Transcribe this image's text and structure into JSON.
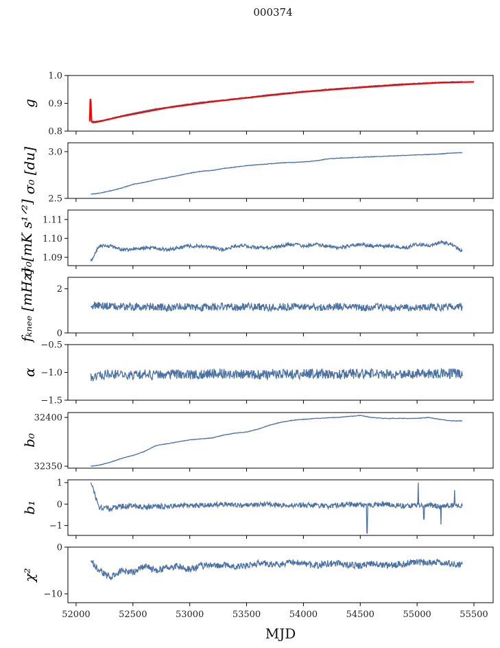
{
  "chart_data": {
    "type": "line",
    "title": "000374",
    "xlabel": "MJD",
    "xlim": [
      51928,
      55669
    ],
    "xticks": [
      52000,
      52500,
      53000,
      53500,
      54000,
      54500,
      55000,
      55500
    ],
    "x": [
      52130,
      52200,
      52300,
      52400,
      52500,
      52600,
      52700,
      52800,
      52900,
      53000,
      53100,
      53200,
      53300,
      53400,
      53500,
      53600,
      53700,
      53800,
      53900,
      54000,
      54100,
      54200,
      54300,
      54400,
      54500,
      54600,
      54700,
      54800,
      54900,
      55000,
      55100,
      55200,
      55300,
      55400
    ],
    "series_color": "#4c72a4",
    "fit_color": "#ff0000",
    "panels": [
      {
        "ylabel": "g",
        "ylim": [
          0.8,
          1.0
        ],
        "yticks": [
          0.8,
          0.9,
          1.0
        ],
        "tick_fmt": 1,
        "noise": 0.0012,
        "values": [
          0.834,
          0.836,
          0.845,
          0.855,
          0.864,
          0.872,
          0.88,
          0.886,
          0.892,
          0.898,
          0.904,
          0.908,
          0.912,
          0.917,
          0.921,
          0.926,
          0.931,
          0.935,
          0.939,
          0.943,
          0.946,
          0.95,
          0.953,
          0.956,
          0.959,
          0.962,
          0.965,
          0.968,
          0.97,
          0.972,
          0.974,
          0.976,
          0.977,
          0.978
        ],
        "fit": {
          "x": [
            52120,
            52125,
            52130,
            52135,
            52140,
            52150,
            52200,
            52400,
            52800,
            53200,
            53600,
            54000,
            54400,
            54800,
            55000,
            55200,
            55400,
            55500
          ],
          "values": [
            0.835,
            0.92,
            0.9,
            0.84,
            0.833,
            0.831,
            0.834,
            0.853,
            0.884,
            0.906,
            0.924,
            0.941,
            0.954,
            0.965,
            0.97,
            0.974,
            0.976,
            0.977
          ]
        }
      },
      {
        "ylabel": "σ₀ [du]",
        "ylim": [
          2.5,
          3.095
        ],
        "yticks": [
          2.5,
          3.0
        ],
        "tick_fmt": 1,
        "noise": 0.003,
        "values": [
          2.545,
          2.555,
          2.58,
          2.61,
          2.65,
          2.67,
          2.7,
          2.72,
          2.745,
          2.77,
          2.79,
          2.8,
          2.82,
          2.835,
          2.85,
          2.86,
          2.87,
          2.88,
          2.885,
          2.89,
          2.9,
          2.92,
          2.93,
          2.935,
          2.94,
          2.945,
          2.95,
          2.955,
          2.96,
          2.965,
          2.97,
          2.975,
          2.985,
          2.99
        ]
      },
      {
        "ylabel": "σ₀[mK s¹ᐟ²]",
        "ylim": [
          1.0856,
          1.115
        ],
        "yticks": [
          1.09,
          1.1,
          1.11
        ],
        "tick_fmt": 2,
        "noise": 0.0009,
        "values": [
          1.088,
          1.096,
          1.096,
          1.094,
          1.094,
          1.095,
          1.095,
          1.094,
          1.095,
          1.096,
          1.096,
          1.095,
          1.094,
          1.096,
          1.096,
          1.095,
          1.095,
          1.096,
          1.097,
          1.096,
          1.097,
          1.096,
          1.095,
          1.096,
          1.097,
          1.096,
          1.096,
          1.096,
          1.095,
          1.097,
          1.096,
          1.098,
          1.097,
          1.093
        ]
      },
      {
        "ylabel": "fₖₙₑₑ [mHz]",
        "ylim": [
          0,
          2.52
        ],
        "yticks": [
          0,
          2
        ],
        "tick_fmt": 0,
        "noise": 0.17,
        "values": [
          1.25,
          1.25,
          1.2,
          1.2,
          1.18,
          1.2,
          1.18,
          1.15,
          1.2,
          1.18,
          1.15,
          1.18,
          1.2,
          1.15,
          1.2,
          1.18,
          1.15,
          1.18,
          1.2,
          1.2,
          1.18,
          1.15,
          1.2,
          1.18,
          1.15,
          1.18,
          1.15,
          1.12,
          1.15,
          1.15,
          1.18,
          1.15,
          1.2,
          1.2
        ]
      },
      {
        "ylabel": "α",
        "ylim": [
          -1.5,
          -0.5
        ],
        "yticks": [
          -1.5,
          -1.0,
          -0.5
        ],
        "tick_fmt": 1,
        "noise": 0.09,
        "values": [
          -1.1,
          -1.05,
          -1.03,
          -1.05,
          -1.04,
          -1.03,
          -1.05,
          -1.04,
          -1.03,
          -1.05,
          -1.04,
          -1.03,
          -1.02,
          -1.04,
          -1.03,
          -1.05,
          -1.03,
          -1.02,
          -1.04,
          -1.03,
          -1.02,
          -1.03,
          -1.04,
          -1.02,
          -1.03,
          -1.02,
          -1.03,
          -1.04,
          -1.02,
          -1.03,
          -1.02,
          -1.03,
          -1.02,
          -1.03
        ]
      },
      {
        "ylabel": "b₀",
        "ylim": [
          32348,
          32405
        ],
        "yticks": [
          32350,
          32400
        ],
        "tick_fmt": 0,
        "noise": 0.25,
        "values": [
          32350,
          32351,
          32354,
          32358,
          32361,
          32365,
          32371,
          32373,
          32375,
          32377,
          32378,
          32379,
          32382,
          32384,
          32385,
          32388,
          32392,
          32395,
          32397,
          32398,
          32399,
          32399.5,
          32400,
          32401,
          32402,
          32400,
          32399,
          32399,
          32399,
          32399,
          32400,
          32398,
          32396.5,
          32396.5
        ]
      },
      {
        "ylabel": "b₁",
        "ylim": [
          -1.46,
          1.13
        ],
        "yticks": [
          -1,
          0,
          1
        ],
        "tick_fmt": 0,
        "noise": 0.12,
        "values": [
          1.0,
          -0.15,
          -0.2,
          -0.1,
          -0.1,
          -0.15,
          -0.1,
          -0.1,
          -0.05,
          -0.1,
          -0.05,
          -0.05,
          0.0,
          -0.05,
          -0.05,
          -0.05,
          0.0,
          -0.05,
          -0.05,
          -0.05,
          -0.05,
          -0.1,
          -0.05,
          0.0,
          -0.05,
          -0.05,
          0.0,
          -0.05,
          -0.1,
          -0.05,
          -0.05,
          -0.1,
          -0.05,
          -0.1
        ],
        "spikes": [
          [
            54560,
            -1.35
          ],
          [
            55010,
            1.0
          ],
          [
            55060,
            -0.7
          ],
          [
            55210,
            -0.95
          ],
          [
            55330,
            0.65
          ]
        ]
      },
      {
        "ylabel": "χ²",
        "ylim": [
          -11.9,
          0
        ],
        "yticks": [
          -10,
          0
        ],
        "tick_fmt": 0,
        "noise": 0.7,
        "values": [
          -3.0,
          -5.0,
          -6.5,
          -5.0,
          -5.5,
          -4.0,
          -5.0,
          -4.5,
          -4.0,
          -4.8,
          -4.0,
          -4.0,
          -3.8,
          -4.2,
          -4.0,
          -3.5,
          -3.5,
          -3.8,
          -3.2,
          -3.5,
          -4.0,
          -3.5,
          -3.5,
          -3.8,
          -4.0,
          -3.5,
          -3.8,
          -3.8,
          -3.5,
          -3.2,
          -3.5,
          -3.2,
          -3.5,
          -3.8
        ]
      }
    ]
  }
}
